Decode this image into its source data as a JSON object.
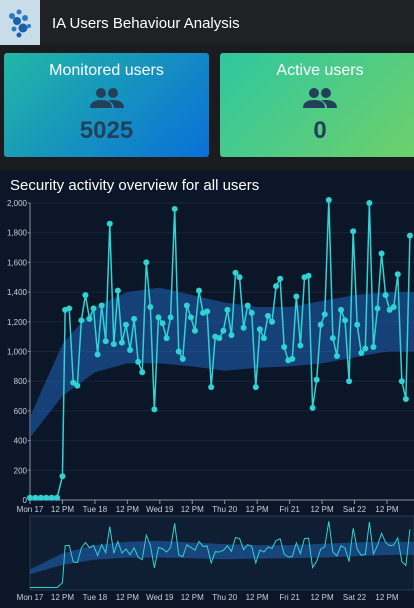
{
  "header": {
    "title": "IA Users Behaviour Analysis"
  },
  "cards": [
    {
      "title": "Monitored users",
      "value": 5025
    },
    {
      "title": "Active users",
      "value": 0
    }
  ],
  "chart_data": {
    "type": "line",
    "title": "Security activity overview for all users",
    "x": [
      0,
      2,
      4,
      6,
      8,
      10,
      12,
      13,
      14.5,
      16,
      17.5,
      19,
      20.5,
      22,
      23.5,
      25,
      26.5,
      28,
      29.5,
      31,
      32.5,
      34,
      35.5,
      37,
      38.5,
      40,
      41.5,
      43,
      44.5,
      46,
      47.5,
      49,
      50.5,
      52,
      53.5,
      55,
      56.5,
      58,
      59.5,
      61,
      62.5,
      64,
      65.5,
      67,
      68.5,
      70,
      71.5,
      73,
      74.5,
      76,
      77.5,
      79,
      80.5,
      82,
      83.5,
      85,
      86.5,
      88,
      89.5,
      91,
      92.5,
      94,
      95.5,
      97,
      98.5,
      100,
      101.5,
      103,
      104.5,
      106,
      107.5,
      109,
      110.5,
      112,
      113.5,
      115,
      116.5,
      118,
      119.5,
      121,
      122.5,
      124,
      125.5,
      127,
      128.5,
      130,
      131.5,
      133,
      134.5,
      136,
      137.5,
      139,
      140.5
    ],
    "series": [
      {
        "color": "#2fd3d3",
        "values": [
          15,
          15,
          15,
          15,
          15,
          15,
          160,
          1280,
          1290,
          790,
          770,
          1210,
          1380,
          1220,
          1290,
          980,
          1310,
          1070,
          1860,
          1050,
          1410,
          1060,
          1180,
          1010,
          1220,
          930,
          860,
          1600,
          1300,
          610,
          1230,
          1190,
          1090,
          1230,
          1960,
          1000,
          950,
          1310,
          1230,
          1140,
          1410,
          1260,
          1270,
          760,
          1100,
          1090,
          1140,
          1280,
          1110,
          1530,
          1500,
          1160,
          1310,
          1260,
          760,
          1150,
          1090,
          1240,
          1200,
          1440,
          1490,
          1030,
          940,
          950,
          1370,
          1040,
          1500,
          1510,
          620,
          810,
          1180,
          1250,
          2020,
          1090,
          970,
          1280,
          1210,
          800,
          1810,
          1180,
          990,
          1020,
          2000,
          1030,
          1290,
          1660,
          1380,
          1280,
          1300,
          1520,
          800,
          680,
          1780
        ]
      }
    ],
    "band": {
      "color": "#1d5fae",
      "x": [
        0,
        12,
        24,
        36,
        48,
        60,
        72,
        84,
        96,
        108,
        120,
        132,
        142
      ],
      "lower": [
        420,
        700,
        860,
        920,
        920,
        900,
        870,
        890,
        900,
        920,
        960,
        1000,
        1000
      ],
      "upper": [
        560,
        1050,
        1300,
        1400,
        1430,
        1380,
        1330,
        1300,
        1300,
        1340,
        1380,
        1400,
        1400
      ]
    },
    "xlim": [
      0,
      142
    ],
    "ylim": [
      0,
      2000
    ],
    "yticks": [
      0,
      200,
      400,
      600,
      800,
      {
        "value": 1000,
        "label": "1,000"
      },
      {
        "value": 1200,
        "label": "1,200"
      },
      {
        "value": 1400,
        "label": "1,400"
      },
      {
        "value": 1600,
        "label": "1,600"
      },
      {
        "value": 1800,
        "label": "1,800"
      },
      {
        "value": 2000,
        "label": "2,000"
      }
    ],
    "xticks": [
      {
        "value": 0,
        "label": "Mon 17"
      },
      {
        "value": 12,
        "label": "12 PM"
      },
      {
        "value": 24,
        "label": "Tue 18"
      },
      {
        "value": 36,
        "label": "12 PM"
      },
      {
        "value": 48,
        "label": "Wed 19"
      },
      {
        "value": 60,
        "label": "12 PM"
      },
      {
        "value": 72,
        "label": "Thu 20"
      },
      {
        "value": 84,
        "label": "12 PM"
      },
      {
        "value": 96,
        "label": "Fri 21"
      },
      {
        "value": 108,
        "label": "12 PM"
      },
      {
        "value": 120,
        "label": "Sat 22"
      },
      {
        "value": 132,
        "label": "12 PM"
      }
    ],
    "grid": true
  }
}
